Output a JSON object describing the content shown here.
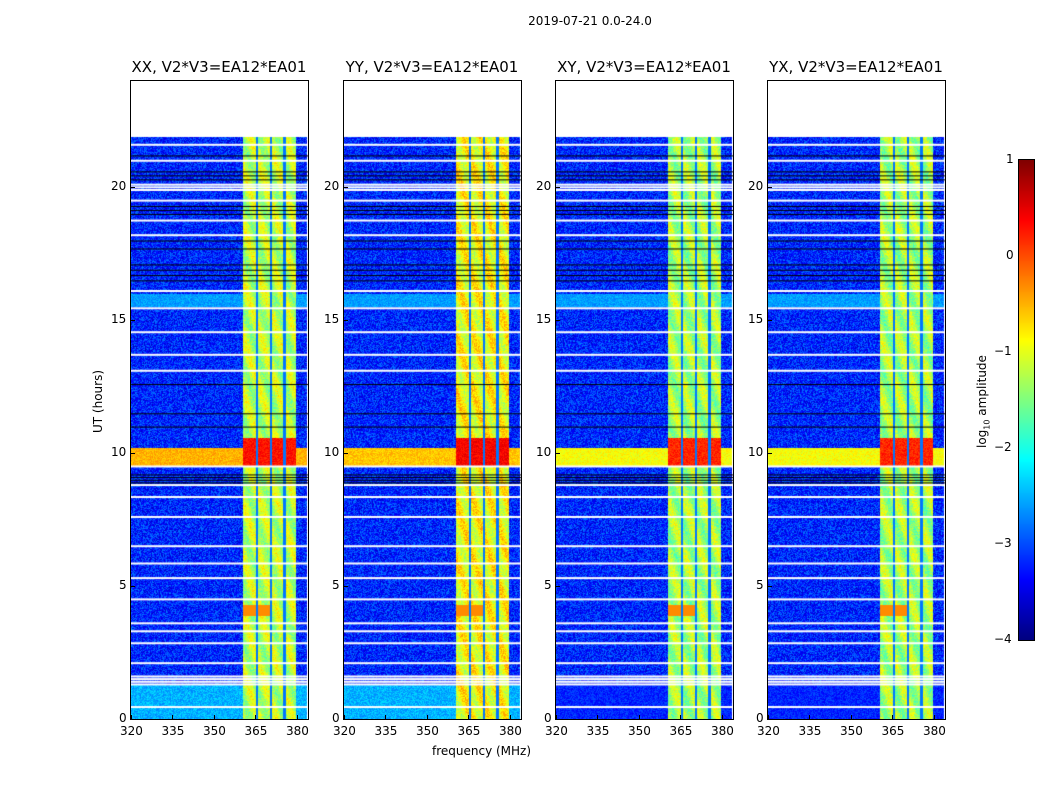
{
  "chart_data": {
    "type": "heatmap",
    "title": "2019-07-21 0.0-24.0",
    "xlabel": "frequency (MHz)",
    "ylabel": "UT (hours)",
    "xlim": [
      320,
      384
    ],
    "ylim": [
      0,
      24
    ],
    "xticks": [
      "320",
      "335",
      "350",
      "365",
      "380"
    ],
    "yticks": [
      "0",
      "5",
      "10",
      "15",
      "20"
    ],
    "data_time_range_hours": [
      0,
      21.9
    ],
    "colorbar": {
      "label_main": "log",
      "label_sub": "10",
      "label_rest": " amplitude",
      "range": [
        -4,
        1
      ],
      "ticks": [
        "1",
        "0",
        "−1",
        "−2",
        "−3",
        "−4"
      ],
      "colormap": "jet"
    },
    "rfi_band_mhz": [
      360.4,
      379.6
    ],
    "subband_edges_mhz": [
      365.5,
      370.5,
      375.3
    ],
    "background_log_amp": -3.2,
    "flagged_white_rows_hours": [
      0.45,
      1.3,
      1.4,
      1.5,
      1.6,
      2.1,
      2.85,
      3.3,
      3.6,
      4.5,
      5.3,
      5.85,
      6.5,
      7.6,
      8.35,
      8.8,
      9.5,
      13.1,
      13.7,
      14.55,
      15.45,
      16.1,
      18.2,
      18.75,
      19.5,
      19.9,
      20.0,
      20.1,
      21.0,
      21.6
    ],
    "flagged_black_rows_hours": [
      8.9,
      9.0,
      9.1,
      9.2,
      11.0,
      11.5,
      12.6,
      16.5,
      16.7,
      16.9,
      17.1,
      17.7,
      18.0,
      19.0,
      19.15,
      19.3,
      20.3,
      20.45,
      20.6,
      21.2
    ],
    "panels": [
      {
        "title": "XX, V2*V3=EA12*EA01",
        "band_log_amp": -1.2,
        "broadband_event_hours": [
          9.5,
          10.2
        ],
        "broadband_log_amp": -0.5,
        "early_level_log_amp": -2.5,
        "event_peak_log_amp": 0.3
      },
      {
        "title": "YY, V2*V3=EA12*EA01",
        "band_log_amp": -0.9,
        "broadband_event_hours": [
          9.5,
          10.2
        ],
        "broadband_log_amp": -0.6,
        "early_level_log_amp": -2.5,
        "event_peak_log_amp": 0.4
      },
      {
        "title": "XY, V2*V3=EA12*EA01",
        "band_log_amp": -1.3,
        "broadband_event_hours": [
          9.5,
          10.2
        ],
        "broadband_log_amp": -0.9,
        "early_level_log_amp": -3.2,
        "event_peak_log_amp": 0.2
      },
      {
        "title": "YX, V2*V3=EA12*EA01",
        "band_log_amp": -1.3,
        "broadband_event_hours": [
          9.5,
          10.2
        ],
        "broadband_log_amp": -0.9,
        "early_level_log_amp": -3.2,
        "event_peak_log_amp": 0.2
      }
    ]
  }
}
